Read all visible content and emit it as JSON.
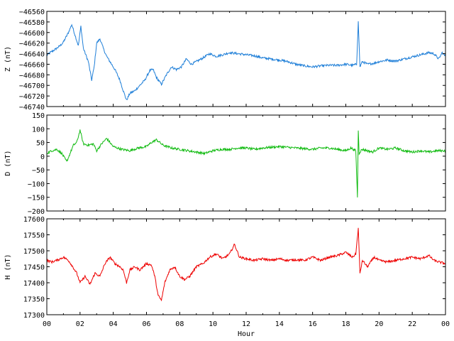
{
  "chart_data": [
    {
      "type": "line",
      "ylabel": "Z (nT)",
      "ylim": [
        -46740,
        -46560
      ],
      "yticks": [
        -46740,
        -46720,
        -46700,
        -46680,
        -46660,
        -46640,
        -46620,
        -46600,
        -46580,
        -46560
      ],
      "xlim": [
        0,
        24
      ],
      "color": "#1f7fd8",
      "series": [
        {
          "x": [
            0,
            0.2,
            0.5,
            0.8,
            1.0,
            1.3,
            1.5,
            1.7,
            1.9,
            2.05,
            2.2,
            2.5,
            2.7,
            2.85,
            3.0,
            3.2,
            3.4,
            3.6,
            3.9,
            4.1,
            4.4,
            4.6,
            4.8,
            5.0,
            5.3,
            5.6,
            5.9,
            6.2,
            6.4,
            6.6,
            6.9,
            7.2,
            7.5,
            7.8,
            8.1,
            8.4,
            8.7,
            9.0,
            9.4,
            9.8,
            10.2,
            10.6,
            11.0,
            11.5,
            12.0,
            12.5,
            13.0,
            13.5,
            14.0,
            14.5,
            15.0,
            15.5,
            16.0,
            16.5,
            17.0,
            17.5,
            18.0,
            18.4,
            18.65,
            18.75,
            18.85,
            19.0,
            19.3,
            19.7,
            20.0,
            20.5,
            21.0,
            21.5,
            22.0,
            22.5,
            23.0,
            23.3,
            23.6,
            23.8,
            24.0
          ],
          "y": [
            -46643,
            -46638,
            -46632,
            -46625,
            -46618,
            -46600,
            -46585,
            -46605,
            -46625,
            -46588,
            -46630,
            -46655,
            -46690,
            -46665,
            -46620,
            -46612,
            -46630,
            -46645,
            -46660,
            -46670,
            -46690,
            -46710,
            -46728,
            -46715,
            -46710,
            -46700,
            -46690,
            -46672,
            -46670,
            -46685,
            -46698,
            -46680,
            -46665,
            -46670,
            -46665,
            -46650,
            -46660,
            -46655,
            -46648,
            -46640,
            -46645,
            -46642,
            -46638,
            -46640,
            -46642,
            -46644,
            -46648,
            -46650,
            -46652,
            -46655,
            -46660,
            -46663,
            -46665,
            -46663,
            -46662,
            -46662,
            -46660,
            -46662,
            -46660,
            -46580,
            -46665,
            -46655,
            -46660,
            -46658,
            -46655,
            -46652,
            -46654,
            -46650,
            -46646,
            -46642,
            -46638,
            -46640,
            -46650,
            -46638,
            -46645
          ]
        }
      ]
    },
    {
      "type": "line",
      "ylabel": "D (nT)",
      "ylim": [
        -200,
        150
      ],
      "yticks": [
        -200,
        -150,
        -100,
        -50,
        0,
        50,
        100,
        150
      ],
      "xlim": [
        0,
        24
      ],
      "color": "#11bb11",
      "series": [
        {
          "x": [
            0,
            0.3,
            0.6,
            0.9,
            1.2,
            1.4,
            1.6,
            1.8,
            2.0,
            2.2,
            2.5,
            2.8,
            3.0,
            3.3,
            3.6,
            4.0,
            4.5,
            5.0,
            5.5,
            6.0,
            6.3,
            6.6,
            7.0,
            7.5,
            8.0,
            8.5,
            9.0,
            9.5,
            10.0,
            10.5,
            11.0,
            11.5,
            12.0,
            12.5,
            13.0,
            14.0,
            15.0,
            16.0,
            16.5,
            17.0,
            17.5,
            18.0,
            18.3,
            18.6,
            18.7,
            18.75,
            18.8,
            18.9,
            19.0,
            19.3,
            19.6,
            20.0,
            20.5,
            21.0,
            21.5,
            22.0,
            22.5,
            23.0,
            23.5,
            24.0
          ],
          "y": [
            10,
            20,
            25,
            10,
            -20,
            10,
            40,
            50,
            95,
            45,
            40,
            45,
            20,
            45,
            65,
            35,
            25,
            20,
            30,
            35,
            50,
            60,
            40,
            30,
            25,
            20,
            15,
            10,
            20,
            25,
            25,
            30,
            30,
            25,
            30,
            35,
            30,
            25,
            30,
            30,
            25,
            20,
            30,
            20,
            -150,
            95,
            10,
            20,
            25,
            20,
            15,
            30,
            25,
            30,
            20,
            15,
            20,
            15,
            20,
            20
          ]
        }
      ]
    },
    {
      "type": "line",
      "ylabel": "H (nT)",
      "ylim": [
        17300,
        17600
      ],
      "yticks": [
        17300,
        17350,
        17400,
        17450,
        17500,
        17550,
        17600
      ],
      "xlim": [
        0,
        24
      ],
      "xlabel": "Hour",
      "xticks": [
        "00",
        "02",
        "04",
        "06",
        "08",
        "10",
        "12",
        "14",
        "16",
        "18",
        "20",
        "22",
        "00"
      ],
      "color": "#ee0000",
      "series": [
        {
          "x": [
            0,
            0.3,
            0.6,
            1.0,
            1.3,
            1.5,
            1.8,
            2.0,
            2.3,
            2.6,
            2.9,
            3.2,
            3.5,
            3.8,
            4.1,
            4.4,
            4.6,
            4.8,
            5.0,
            5.3,
            5.6,
            6.0,
            6.3,
            6.5,
            6.7,
            6.9,
            7.1,
            7.4,
            7.7,
            8.0,
            8.3,
            8.6,
            9.0,
            9.4,
            9.8,
            10.2,
            10.6,
            11.0,
            11.3,
            11.6,
            12.0,
            12.5,
            13.0,
            13.5,
            14.0,
            14.5,
            15.0,
            15.5,
            16.0,
            16.5,
            17.0,
            17.5,
            18.0,
            18.4,
            18.6,
            18.75,
            18.85,
            19.0,
            19.3,
            19.7,
            20.0,
            20.5,
            21.0,
            21.5,
            22.0,
            22.5,
            23.0,
            23.3,
            23.6,
            24.0
          ],
          "y": [
            17470,
            17465,
            17470,
            17480,
            17470,
            17455,
            17430,
            17400,
            17420,
            17395,
            17430,
            17420,
            17460,
            17480,
            17460,
            17450,
            17440,
            17400,
            17440,
            17450,
            17440,
            17460,
            17455,
            17420,
            17360,
            17345,
            17400,
            17440,
            17450,
            17420,
            17410,
            17420,
            17450,
            17460,
            17480,
            17490,
            17475,
            17490,
            17520,
            17480,
            17475,
            17470,
            17475,
            17470,
            17475,
            17470,
            17472,
            17470,
            17480,
            17470,
            17480,
            17485,
            17495,
            17480,
            17490,
            17570,
            17430,
            17470,
            17450,
            17480,
            17470,
            17465,
            17470,
            17475,
            17480,
            17475,
            17485,
            17470,
            17465,
            17460
          ]
        }
      ]
    }
  ]
}
